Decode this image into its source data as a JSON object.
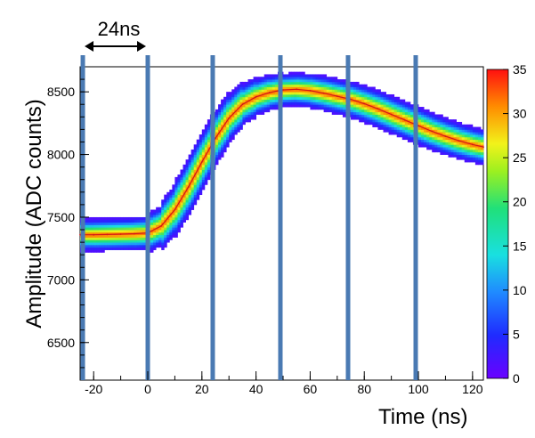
{
  "chart_data": {
    "type": "heatmap",
    "title": "",
    "xlabel": "Time (ns)",
    "ylabel": "Amplitude (ADC counts)",
    "xlim": [
      -25,
      124
    ],
    "ylim": [
      6200,
      8700
    ],
    "x_ticks": [
      -20,
      0,
      20,
      40,
      60,
      80,
      100,
      120
    ],
    "y_ticks": [
      6500,
      7000,
      7500,
      8000,
      8500
    ],
    "colorbar": {
      "min": 0,
      "max": 35,
      "ticks": [
        0,
        5,
        10,
        15,
        20,
        25,
        30,
        35
      ]
    },
    "annotation": {
      "text": "24ns",
      "x_from": -24,
      "x_to": 0
    },
    "sampling_lines_x": [
      -24,
      0,
      24,
      49,
      74,
      99
    ],
    "mean_profile": {
      "x": [
        -25,
        -20,
        -15,
        -10,
        -5,
        0,
        5,
        10,
        15,
        20,
        25,
        30,
        35,
        40,
        45,
        50,
        55,
        60,
        65,
        70,
        75,
        80,
        85,
        90,
        95,
        100,
        105,
        110,
        115,
        120,
        124
      ],
      "y": [
        7360,
        7360,
        7362,
        7365,
        7368,
        7375,
        7430,
        7560,
        7740,
        7940,
        8130,
        8290,
        8400,
        8460,
        8495,
        8515,
        8520,
        8510,
        8490,
        8465,
        8440,
        8405,
        8365,
        8320,
        8275,
        8230,
        8185,
        8145,
        8110,
        8080,
        8060
      ]
    }
  }
}
